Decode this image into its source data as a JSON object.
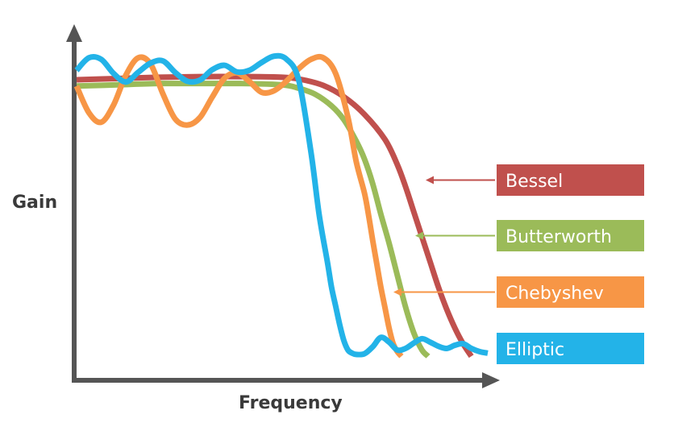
{
  "chart_data": {
    "type": "line",
    "xlabel": "Frequency",
    "ylabel": "Gain",
    "xlim": [
      0,
      100
    ],
    "ylim": [
      0,
      100
    ],
    "grid": false,
    "legend_placement": "right",
    "series": [
      {
        "name": "Bessel",
        "color": "#c0504d",
        "x": [
          0,
          10,
          20,
          30,
          40,
          50,
          55,
          60,
          65,
          70,
          75,
          78,
          80,
          82,
          84,
          86,
          88,
          90,
          92,
          94,
          96
        ],
        "y": [
          90,
          90.4,
          90.8,
          91,
          91,
          90.8,
          90,
          88.2,
          84.6,
          79,
          71,
          63,
          56,
          48,
          40,
          32,
          24,
          17,
          11,
          6,
          2
        ]
      },
      {
        "name": "Butterworth",
        "color": "#9bbb59",
        "x": [
          0,
          10,
          20,
          30,
          40,
          50,
          54,
          58,
          62,
          65,
          68,
          70,
          72,
          74,
          76,
          78,
          80,
          82,
          84,
          85.5
        ],
        "y": [
          88,
          88.4,
          88.8,
          88.8,
          88.8,
          88.4,
          87.3,
          85.4,
          81.7,
          77.3,
          70.5,
          64.8,
          57,
          47.2,
          38,
          27.8,
          17.7,
          9.5,
          4,
          2
        ]
      },
      {
        "name": "Chebyshev",
        "color": "#f79646",
        "x": [
          0,
          3,
          6,
          9,
          12,
          15,
          18,
          21,
          24,
          27,
          30,
          33,
          36,
          39,
          42,
          45,
          48,
          51,
          54,
          57,
          60,
          63,
          66,
          68,
          70,
          71,
          72,
          73,
          74,
          75,
          76,
          77,
          78,
          79
        ],
        "y": [
          88,
          79.5,
          76.5,
          82,
          91.5,
          97,
          95,
          85.5,
          77.5,
          75.6,
          78,
          84.5,
          90.5,
          92.2,
          89.5,
          86,
          86.5,
          89.5,
          93.5,
          96.5,
          97,
          92,
          78,
          64,
          54,
          47,
          39,
          31.5,
          24,
          17.5,
          11,
          6,
          3.5,
          2
        ]
      },
      {
        "name": "Elliptic",
        "color": "#23b3e8",
        "x": [
          0,
          3,
          6,
          9,
          12,
          15,
          18,
          21,
          24,
          27,
          30,
          33,
          36,
          39,
          42,
          45,
          48,
          51,
          54,
          57,
          59,
          61,
          62,
          63,
          64,
          65,
          66,
          67,
          68,
          70,
          72,
          74,
          76,
          78,
          80,
          82,
          84,
          86,
          88,
          90,
          92,
          94,
          96,
          98,
          100
        ],
        "y": [
          93,
          97,
          96.5,
          92,
          89.3,
          92.4,
          95.3,
          96,
          92.3,
          89.5,
          89.9,
          93.2,
          94.6,
          92.5,
          93,
          95.5,
          97.5,
          96.6,
          90,
          67,
          47,
          32,
          24,
          18,
          12,
          7,
          4,
          3,
          2.6,
          2.8,
          5,
          8,
          6.5,
          4,
          4.5,
          6.2,
          7.6,
          6.5,
          5.2,
          4.5,
          5.5,
          6,
          4.5,
          3.5,
          3
        ]
      }
    ]
  }
}
